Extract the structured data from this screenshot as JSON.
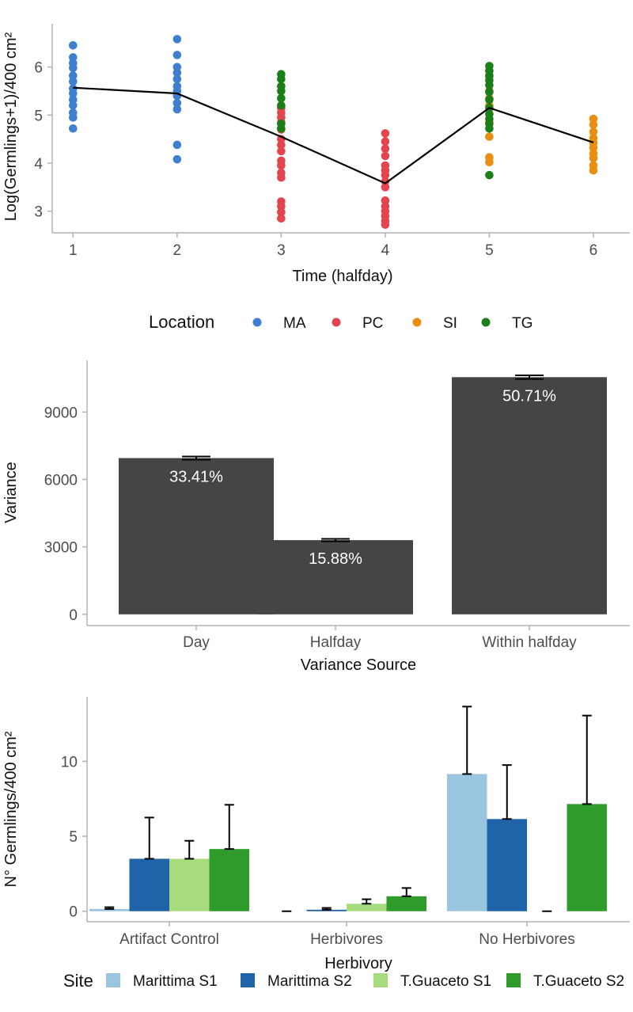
{
  "chart_data": [
    {
      "type": "scatter",
      "xlabel": "Time (halfday)",
      "ylabel": "Log(Germlings+1)/400 cm²",
      "xlim": [
        0.8,
        6.35
      ],
      "ylim": [
        2.55,
        6.9
      ],
      "x_ticks": [
        1,
        2,
        3,
        4,
        5,
        6
      ],
      "y_ticks": [
        3,
        4,
        5,
        6
      ],
      "legend": {
        "title": "Location",
        "position": "bottom",
        "entries": [
          {
            "name": "MA",
            "color": "#3f7fcf"
          },
          {
            "name": "PC",
            "color": "#e2454e"
          },
          {
            "name": "SI",
            "color": "#e88e10"
          },
          {
            "name": "TG",
            "color": "#1a7f18"
          }
        ]
      },
      "series": [
        {
          "name": "MA",
          "color": "#3f7fcf",
          "points": [
            [
              1,
              6.45
            ],
            [
              1,
              6.2
            ],
            [
              1,
              6.08
            ],
            [
              1,
              5.98
            ],
            [
              1,
              5.82
            ],
            [
              1,
              5.7
            ],
            [
              1,
              5.55
            ],
            [
              1,
              5.45
            ],
            [
              1,
              5.32
            ],
            [
              1,
              5.2
            ],
            [
              1,
              5.05
            ],
            [
              1,
              4.95
            ],
            [
              1,
              4.72
            ],
            [
              2,
              6.58
            ],
            [
              2,
              6.25
            ],
            [
              2,
              6.0
            ],
            [
              2,
              5.88
            ],
            [
              2,
              5.75
            ],
            [
              2,
              5.6
            ],
            [
              2,
              5.5
            ],
            [
              2,
              5.4
            ],
            [
              2,
              5.25
            ],
            [
              2,
              5.12
            ],
            [
              2,
              4.38
            ],
            [
              2,
              4.08
            ]
          ]
        },
        {
          "name": "PC",
          "color": "#e2454e",
          "points": [
            [
              3,
              5.15
            ],
            [
              3,
              5.05
            ],
            [
              3,
              4.95
            ],
            [
              3,
              4.85
            ],
            [
              3,
              4.7
            ],
            [
              3,
              4.5
            ],
            [
              3,
              4.38
            ],
            [
              3,
              4.25
            ],
            [
              3,
              4.05
            ],
            [
              3,
              3.95
            ],
            [
              3,
              3.8
            ],
            [
              3,
              3.7
            ],
            [
              3,
              3.2
            ],
            [
              3,
              3.1
            ],
            [
              3,
              2.98
            ],
            [
              3,
              2.85
            ],
            [
              4,
              4.62
            ],
            [
              4,
              4.45
            ],
            [
              4,
              4.3
            ],
            [
              4,
              4.15
            ],
            [
              4,
              3.95
            ],
            [
              4,
              3.85
            ],
            [
              4,
              3.75
            ],
            [
              4,
              3.62
            ],
            [
              4,
              3.5
            ],
            [
              4,
              3.22
            ],
            [
              4,
              3.1
            ],
            [
              4,
              3.0
            ],
            [
              4,
              2.9
            ],
            [
              4,
              2.8
            ],
            [
              4,
              2.72
            ]
          ]
        },
        {
          "name": "SI",
          "color": "#e88e10",
          "points": [
            [
              5,
              5.92
            ],
            [
              5,
              5.8
            ],
            [
              5,
              5.5
            ],
            [
              5,
              5.35
            ],
            [
              5,
              5.2
            ],
            [
              5,
              4.85
            ],
            [
              5,
              4.55
            ],
            [
              5,
              4.12
            ],
            [
              5,
              4.02
            ],
            [
              6,
              4.92
            ],
            [
              6,
              4.8
            ],
            [
              6,
              4.65
            ],
            [
              6,
              4.52
            ],
            [
              6,
              4.42
            ],
            [
              6,
              4.32
            ],
            [
              6,
              4.2
            ],
            [
              6,
              4.1
            ],
            [
              6,
              3.95
            ],
            [
              6,
              3.85
            ]
          ]
        },
        {
          "name": "TG",
          "color": "#1a7f18",
          "points": [
            [
              3,
              5.85
            ],
            [
              3,
              5.75
            ],
            [
              3,
              5.6
            ],
            [
              3,
              5.5
            ],
            [
              3,
              5.35
            ],
            [
              3,
              5.2
            ],
            [
              3,
              4.82
            ],
            [
              3,
              4.72
            ],
            [
              5,
              6.02
            ],
            [
              5,
              5.92
            ],
            [
              5,
              5.82
            ],
            [
              5,
              5.72
            ],
            [
              5,
              5.62
            ],
            [
              5,
              5.48
            ],
            [
              5,
              5.32
            ],
            [
              5,
              5.15
            ],
            [
              5,
              5.02
            ],
            [
              5,
              4.92
            ],
            [
              5,
              4.82
            ],
            [
              5,
              4.72
            ],
            [
              5,
              3.75
            ]
          ]
        }
      ],
      "mean_line": {
        "color": "#000000",
        "points": [
          [
            1,
            5.57
          ],
          [
            2,
            5.45
          ],
          [
            3,
            4.55
          ],
          [
            4,
            3.58
          ],
          [
            5,
            5.15
          ],
          [
            6,
            4.43
          ]
        ]
      }
    },
    {
      "type": "bar",
      "xlabel": "Variance Source",
      "ylabel": "Variance",
      "categories": [
        "Day",
        "Halfday",
        "Within halfday"
      ],
      "values": [
        6950,
        3300,
        10550
      ],
      "errors": [
        70,
        55,
        80
      ],
      "labels": [
        "33.41%",
        "15.88%",
        "50.71%"
      ],
      "color": "#454545",
      "ylim": [
        -500,
        11300
      ],
      "y_ticks": [
        0,
        3000,
        6000,
        9000
      ]
    },
    {
      "type": "bar",
      "xlabel": "Herbivory",
      "ylabel": "N° Germlings/400 cm²",
      "categories": [
        "Artifact Control",
        "Herbivores",
        "No Herbivores"
      ],
      "ylim": [
        -0.7,
        14.3
      ],
      "y_ticks": [
        0,
        5,
        10
      ],
      "legend": {
        "title": "Site",
        "position": "bottom"
      },
      "series": [
        {
          "name": "Marittima S1",
          "color": "#9ac5de",
          "values": [
            0.15,
            0.0,
            9.15
          ],
          "errors": [
            0.12,
            0.0,
            4.5
          ]
        },
        {
          "name": "Marittima S2",
          "color": "#1f64a8",
          "values": [
            3.5,
            0.1,
            6.15
          ],
          "errors": [
            2.75,
            0.12,
            3.6
          ]
        },
        {
          "name": "T.Guaceto S1",
          "color": "#a6dc7e",
          "values": [
            3.5,
            0.5,
            0.0
          ],
          "errors": [
            1.2,
            0.3,
            0.0
          ]
        },
        {
          "name": "T.Guaceto S2",
          "color": "#2e9b2b",
          "values": [
            4.15,
            1.0,
            7.15
          ],
          "errors": [
            2.95,
            0.55,
            5.9
          ]
        }
      ]
    }
  ]
}
